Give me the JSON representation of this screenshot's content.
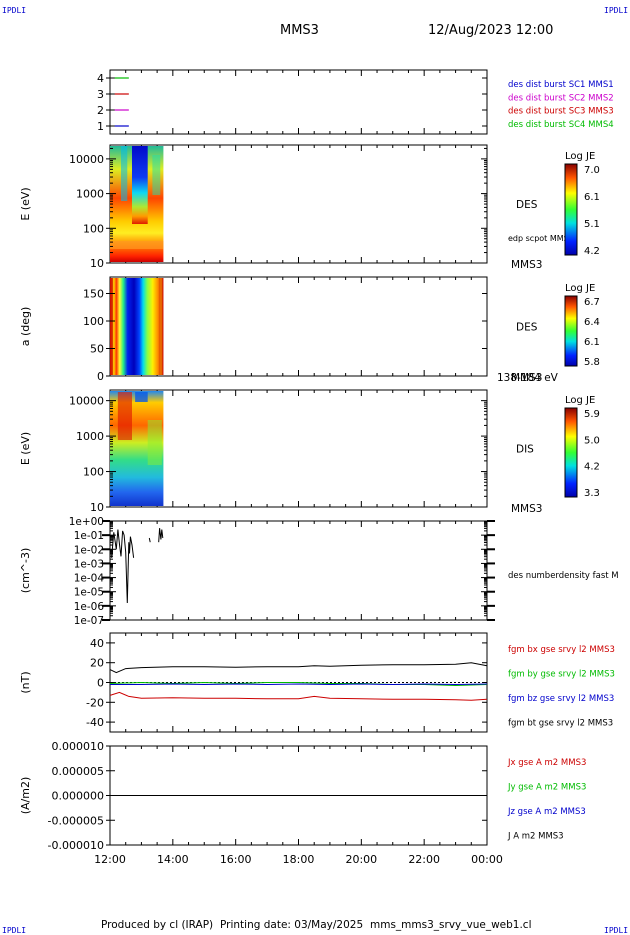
{
  "header": {
    "corner_left": "IPDLI",
    "corner_right": "IPDLI",
    "spacecraft": "MMS3",
    "datetime": "12/Aug/2023 12:00"
  },
  "footer": {
    "produced": "Produced by cl (IRAP)",
    "printing": "Printing date: 03/May/2025",
    "filename": "mms_mms3_srvy_vue_web1.cl",
    "corner_left": "IPDLI",
    "corner_right": "IPDLI"
  },
  "colors": {
    "sc1": "#0000cc",
    "sc2": "#cc00cc",
    "sc3": "#cc0000",
    "sc4": "#00bb00",
    "bx": "#cc0000",
    "by": "#00bb00",
    "bz": "#0000cc",
    "bt": "#000000"
  },
  "chart_data": [
    {
      "type": "line",
      "panel": "spacecraft-availability",
      "ylim": [
        0.5,
        4.5
      ],
      "yticks": [
        "1",
        "2",
        "3",
        "4"
      ],
      "legend": [
        {
          "text": "des dist burst SC1 MMS1",
          "color": "#0000cc"
        },
        {
          "text": "des dist burst SC2 MMS2",
          "color": "#cc00cc"
        },
        {
          "text": "des dist burst SC3 MMS3",
          "color": "#cc0000"
        },
        {
          "text": "des dist burst SC4 MMS4",
          "color": "#00bb00"
        }
      ],
      "series": [
        {
          "level": 4,
          "color": "#00bb00",
          "x": [
            0.15,
            0.6
          ]
        },
        {
          "level": 3,
          "color": "#cc0000",
          "x": [
            0.15,
            0.6
          ]
        },
        {
          "level": 2,
          "color": "#cc00cc",
          "x": [
            0.15,
            0.6
          ]
        },
        {
          "level": 1,
          "color": "#0000cc",
          "x": [
            0.15,
            0.6
          ]
        }
      ]
    },
    {
      "type": "heatmap",
      "panel": "des-energy",
      "ylabel": "E (eV)",
      "yscale": "log",
      "yticks": [
        "10",
        "100",
        "1000",
        "10000"
      ],
      "data_hours": [
        0.0,
        1.7
      ],
      "side_label": "DES",
      "note": "edp scpot MMS3",
      "bottom_label": "MMS3",
      "colorbar": {
        "title": "Log JE",
        "ticks": [
          "7.0",
          "6.1",
          "5.1",
          "4.2"
        ],
        "range": [
          4.2,
          7.0
        ]
      }
    },
    {
      "type": "heatmap",
      "panel": "des-pitch",
      "ylabel": "a (deg)",
      "ylim": [
        0,
        180
      ],
      "yticks": [
        "0",
        "50",
        "100",
        "150"
      ],
      "data_hours": [
        0.0,
        1.7
      ],
      "side_label": "DES",
      "bottom_label": "MMS3",
      "energy_label": "138-184 eV",
      "colorbar": {
        "title": "Log JE",
        "ticks": [
          "6.7",
          "6.4",
          "6.1",
          "5.8"
        ],
        "range": [
          5.8,
          6.7
        ]
      }
    },
    {
      "type": "heatmap",
      "panel": "dis-energy",
      "ylabel": "E (eV)",
      "yscale": "log",
      "yticks": [
        "10",
        "100",
        "1000",
        "10000"
      ],
      "data_hours": [
        0.0,
        1.7
      ],
      "side_label": "DIS",
      "bottom_label": "MMS3",
      "colorbar": {
        "title": "Log JE",
        "ticks": [
          "5.9",
          "5.0",
          "4.2",
          "3.3"
        ],
        "range": [
          3.3,
          5.9
        ]
      }
    },
    {
      "type": "line",
      "panel": "density",
      "ylabel": "(cm^-3)",
      "yscale": "log",
      "yticks": [
        "1e-07",
        "1e-06",
        "1e-05",
        "1e-04",
        "1e-03",
        "1e-02",
        "1e-01",
        "1e+00"
      ],
      "legend": [
        {
          "text": "des numberdensity fast M",
          "color": "#000000"
        }
      ],
      "series": [
        {
          "name": "des numberdensity fast",
          "x_hours": [
            0.05,
            0.12,
            0.2,
            0.25,
            0.3,
            0.35,
            0.4,
            0.45,
            0.5,
            0.55,
            0.6,
            0.62,
            0.65,
            0.7,
            0.75
          ],
          "log10_y": [
            -2.6,
            -0.8,
            -2.0,
            -0.6,
            -1.6,
            -2.5,
            -0.7,
            -1.0,
            -2.2,
            -5.8,
            -1.5,
            -2.3,
            -1.1,
            -1.7,
            -2.6
          ]
        },
        {
          "name": "des numberdensity fast",
          "x_hours": [
            1.25,
            1.28
          ],
          "log10_y": [
            -1.2,
            -1.5
          ]
        },
        {
          "name": "des numberdensity fast",
          "x_hours": [
            1.55,
            1.58,
            1.62,
            1.65,
            1.68
          ],
          "log10_y": [
            -1.5,
            -0.5,
            -1.3,
            -0.6,
            -1.2
          ]
        }
      ]
    },
    {
      "type": "line",
      "panel": "magnetic-field",
      "ylabel": "(nT)",
      "ylim": [
        -50,
        50
      ],
      "yticks": [
        "-40",
        "-20",
        "0",
        "20",
        "40"
      ],
      "legend": [
        {
          "text": "fgm bx gse srvy l2 MMS3",
          "color": "#cc0000"
        },
        {
          "text": "fgm by gse srvy l2 MMS3",
          "color": "#00bb00"
        },
        {
          "text": "fgm bz gse srvy l2 MMS3",
          "color": "#0000cc"
        },
        {
          "text": "fgm bt gse srvy l2 MMS3",
          "color": "#000000"
        }
      ],
      "series": [
        {
          "name": "bt",
          "color": "#000000",
          "x_hours": [
            0,
            0.2,
            0.5,
            1,
            2,
            3,
            4,
            5,
            6,
            6.5,
            7,
            8,
            9,
            10,
            11,
            11.5,
            12
          ],
          "y": [
            13,
            10,
            14,
            15,
            16,
            16,
            15.5,
            16,
            16,
            17,
            16.5,
            17.5,
            18,
            18,
            18.5,
            20,
            17
          ]
        },
        {
          "name": "bx",
          "color": "#cc0000",
          "x_hours": [
            0,
            0.3,
            0.6,
            1,
            2,
            3,
            4,
            5,
            6,
            6.5,
            7,
            8,
            9,
            10,
            11,
            11.5,
            12
          ],
          "y": [
            -13,
            -10,
            -14,
            -16,
            -15.5,
            -16,
            -16,
            -16.5,
            -16.5,
            -14,
            -16,
            -16.5,
            -17,
            -17,
            -17.5,
            -18,
            -17
          ]
        },
        {
          "name": "by",
          "color": "#00bb00",
          "x_hours": [
            0,
            1,
            2,
            3,
            4,
            5,
            6,
            7,
            8,
            9,
            10,
            11,
            12
          ],
          "y": [
            -1,
            0,
            -1,
            0,
            -1,
            0,
            0,
            -1,
            -1,
            -2,
            -2,
            -3,
            -2
          ]
        },
        {
          "name": "bz",
          "color": "#0000cc",
          "x_hours": [
            0,
            1,
            2,
            3,
            4,
            5,
            6,
            7,
            8,
            9,
            10,
            11,
            12
          ],
          "y": [
            -2,
            -2,
            -1.5,
            -2,
            -1.5,
            -2,
            -1.5,
            -2,
            -1.5,
            -2,
            -1.5,
            -2,
            -1.5
          ]
        }
      ]
    },
    {
      "type": "line",
      "panel": "current-density",
      "ylabel": "(A/m2)",
      "ylim": [
        -1e-05,
        1e-05
      ],
      "yticks": [
        "-0.000010",
        "-0.000005",
        "0.000000",
        "0.000005",
        "0.000010"
      ],
      "xlabels": [
        "12:00",
        "14:00",
        "16:00",
        "18:00",
        "20:00",
        "22:00",
        "00:00"
      ],
      "legend": [
        {
          "text": "Jx gse A m2 MMS3",
          "color": "#cc0000"
        },
        {
          "text": "Jy gse A m2 MMS3",
          "color": "#00bb00"
        },
        {
          "text": "Jz gse A m2 MMS3",
          "color": "#0000cc"
        },
        {
          "text": "J A m2 MMS3",
          "color": "#000000"
        }
      ],
      "series": [
        {
          "name": "J",
          "color": "#000000",
          "x_hours": [
            0,
            12
          ],
          "y": [
            0,
            0
          ]
        }
      ]
    }
  ]
}
